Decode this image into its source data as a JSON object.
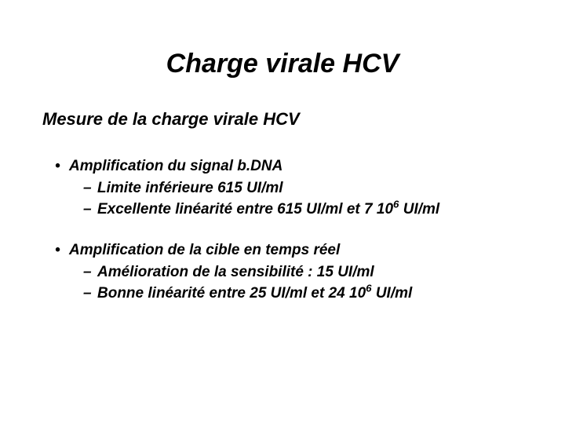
{
  "title": "Charge virale HCV",
  "subtitle": "Mesure de la charge virale HCV",
  "group1": {
    "head": "Amplification du signal b.DNA",
    "sub1": "Limite inférieure 615 UI/ml",
    "sub2_pre": "Excellente linéarité entre 615 UI/ml et 7 10",
    "sub2_sup": "6",
    "sub2_post": " UI/ml"
  },
  "group2": {
    "head": "Amplification de la cible en temps réel",
    "sub1": "Amélioration de la sensibilité : 15 UI/ml",
    "sub2_pre": "Bonne linéarité entre 25 UI/ml et 24 10",
    "sub2_sup": "6",
    "sub2_post": " UI/ml"
  },
  "marks": {
    "dot": "•",
    "dash": "–"
  }
}
